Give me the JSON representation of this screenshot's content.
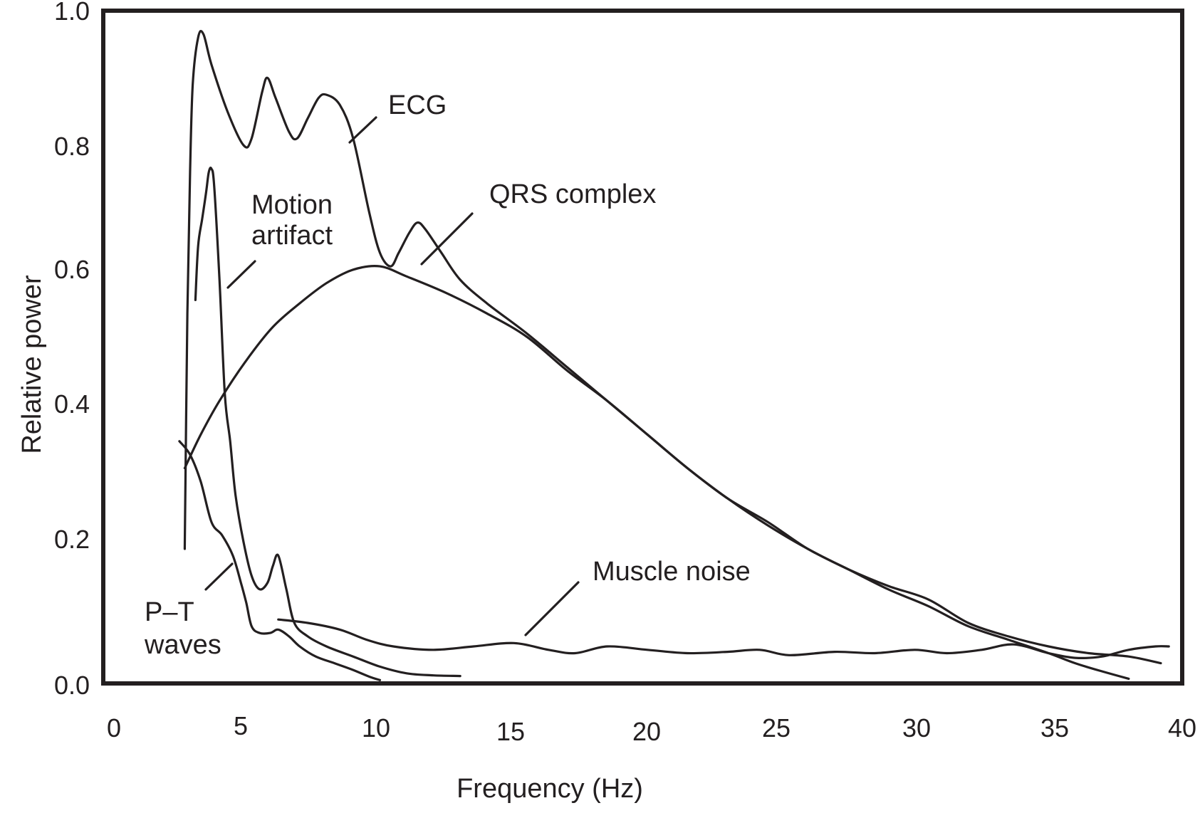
{
  "chart_data": {
    "type": "line",
    "xlabel": "Frequency (Hz)",
    "ylabel": "Relative power",
    "xlim": [
      0,
      40
    ],
    "ylim": [
      0,
      1.0
    ],
    "x_ticks": [
      "0",
      "5",
      "10",
      "15",
      "20",
      "25",
      "30",
      "35",
      "40"
    ],
    "y_ticks": [
      "0.0",
      "0.2",
      "0.4",
      "0.6",
      "0.8",
      "1.0"
    ],
    "grid": false,
    "legend": "none",
    "annotations": [
      {
        "id": "ecg",
        "lines": [
          "ECG"
        ]
      },
      {
        "id": "qrs",
        "lines": [
          "QRS complex"
        ]
      },
      {
        "id": "motion",
        "lines": [
          "Motion",
          "artifact"
        ]
      },
      {
        "id": "pt",
        "lines": [
          "P–T",
          "waves"
        ]
      },
      {
        "id": "muscle",
        "lines": [
          "Muscle noise"
        ]
      }
    ],
    "series": [
      {
        "id": "ecg",
        "label_ref": "ecg",
        "points": [
          [
            2.7,
            0.2
          ],
          [
            2.8,
            0.55
          ],
          [
            2.9,
            0.76
          ],
          [
            3.0,
            0.89
          ],
          [
            3.2,
            0.96
          ],
          [
            3.4,
            0.965
          ],
          [
            3.7,
            0.92
          ],
          [
            4.3,
            0.85
          ],
          [
            4.9,
            0.8
          ],
          [
            5.2,
            0.81
          ],
          [
            5.6,
            0.88
          ],
          [
            5.8,
            0.9
          ],
          [
            6.1,
            0.87
          ],
          [
            6.6,
            0.82
          ],
          [
            6.9,
            0.81
          ],
          [
            7.3,
            0.84
          ],
          [
            7.7,
            0.87
          ],
          [
            8.0,
            0.875
          ],
          [
            8.5,
            0.86
          ],
          [
            9.0,
            0.81
          ],
          [
            9.6,
            0.7
          ],
          [
            10.0,
            0.64
          ],
          [
            10.4,
            0.62
          ],
          [
            10.7,
            0.64
          ],
          [
            11.1,
            0.67
          ],
          [
            11.4,
            0.685
          ],
          [
            11.7,
            0.675
          ],
          [
            12.3,
            0.64
          ],
          [
            13.0,
            0.6
          ],
          [
            14.0,
            0.565
          ],
          [
            15.5,
            0.52
          ],
          [
            17.0,
            0.47
          ],
          [
            18.5,
            0.42
          ],
          [
            20.0,
            0.37
          ],
          [
            21.5,
            0.32
          ],
          [
            23.0,
            0.275
          ],
          [
            24.5,
            0.24
          ],
          [
            26.0,
            0.2
          ],
          [
            27.5,
            0.17
          ],
          [
            29.0,
            0.14
          ],
          [
            30.5,
            0.115
          ],
          [
            32.0,
            0.085
          ],
          [
            33.5,
            0.065
          ],
          [
            35.0,
            0.045
          ],
          [
            36.0,
            0.03
          ],
          [
            37.0,
            0.018
          ],
          [
            38.0,
            0.007
          ]
        ]
      },
      {
        "id": "qrs",
        "label_ref": "qrs",
        "points": [
          [
            2.7,
            0.32
          ],
          [
            3.3,
            0.37
          ],
          [
            4.0,
            0.42
          ],
          [
            5.0,
            0.48
          ],
          [
            6.0,
            0.53
          ],
          [
            7.0,
            0.565
          ],
          [
            8.0,
            0.595
          ],
          [
            9.0,
            0.615
          ],
          [
            10.0,
            0.62
          ],
          [
            11.0,
            0.605
          ],
          [
            12.5,
            0.58
          ],
          [
            14.0,
            0.55
          ],
          [
            15.5,
            0.515
          ],
          [
            17.0,
            0.465
          ],
          [
            18.5,
            0.42
          ],
          [
            20.0,
            0.37
          ],
          [
            21.5,
            0.32
          ],
          [
            23.0,
            0.275
          ],
          [
            24.5,
            0.235
          ],
          [
            26.0,
            0.2
          ],
          [
            27.5,
            0.17
          ],
          [
            29.0,
            0.145
          ],
          [
            30.5,
            0.125
          ],
          [
            32.0,
            0.09
          ],
          [
            33.5,
            0.07
          ],
          [
            35.0,
            0.055
          ],
          [
            36.5,
            0.045
          ],
          [
            38.0,
            0.04
          ],
          [
            39.2,
            0.03
          ]
        ]
      },
      {
        "id": "motion",
        "label_ref": "motion",
        "points": [
          [
            3.1,
            0.57
          ],
          [
            3.2,
            0.65
          ],
          [
            3.35,
            0.69
          ],
          [
            3.5,
            0.73
          ],
          [
            3.6,
            0.76
          ],
          [
            3.7,
            0.765
          ],
          [
            3.8,
            0.74
          ],
          [
            4.0,
            0.6
          ],
          [
            4.2,
            0.43
          ],
          [
            4.4,
            0.36
          ],
          [
            4.6,
            0.28
          ],
          [
            4.9,
            0.21
          ],
          [
            5.2,
            0.16
          ],
          [
            5.5,
            0.14
          ],
          [
            5.8,
            0.15
          ],
          [
            6.0,
            0.175
          ],
          [
            6.2,
            0.19
          ],
          [
            6.5,
            0.14
          ],
          [
            6.8,
            0.09
          ],
          [
            7.3,
            0.07
          ],
          [
            8.0,
            0.055
          ],
          [
            9.0,
            0.04
          ],
          [
            10.0,
            0.025
          ],
          [
            11.0,
            0.015
          ],
          [
            12.0,
            0.012
          ],
          [
            13.0,
            0.011
          ]
        ]
      },
      {
        "id": "pt",
        "label_ref": "pt",
        "points": [
          [
            2.5,
            0.36
          ],
          [
            2.9,
            0.34
          ],
          [
            3.3,
            0.3
          ],
          [
            3.7,
            0.24
          ],
          [
            4.1,
            0.22
          ],
          [
            4.5,
            0.19
          ],
          [
            4.8,
            0.15
          ],
          [
            5.0,
            0.12
          ],
          [
            5.2,
            0.085
          ],
          [
            5.5,
            0.075
          ],
          [
            5.9,
            0.075
          ],
          [
            6.2,
            0.08
          ],
          [
            6.6,
            0.07
          ],
          [
            7.0,
            0.055
          ],
          [
            7.6,
            0.04
          ],
          [
            8.3,
            0.03
          ],
          [
            9.0,
            0.02
          ],
          [
            9.6,
            0.01
          ],
          [
            10.0,
            0.005
          ]
        ]
      },
      {
        "id": "muscle",
        "label_ref": "muscle",
        "points": [
          [
            6.2,
            0.095
          ],
          [
            7.3,
            0.09
          ],
          [
            8.5,
            0.08
          ],
          [
            9.5,
            0.065
          ],
          [
            10.5,
            0.055
          ],
          [
            12.0,
            0.05
          ],
          [
            13.5,
            0.055
          ],
          [
            15.0,
            0.06
          ],
          [
            16.3,
            0.05
          ],
          [
            17.3,
            0.045
          ],
          [
            18.5,
            0.055
          ],
          [
            20.0,
            0.05
          ],
          [
            21.5,
            0.045
          ],
          [
            23.0,
            0.047
          ],
          [
            24.2,
            0.05
          ],
          [
            25.3,
            0.042
          ],
          [
            27.0,
            0.047
          ],
          [
            28.5,
            0.045
          ],
          [
            30.0,
            0.05
          ],
          [
            31.2,
            0.045
          ],
          [
            32.5,
            0.05
          ],
          [
            33.7,
            0.058
          ],
          [
            35.0,
            0.045
          ],
          [
            36.0,
            0.038
          ],
          [
            37.0,
            0.04
          ],
          [
            38.0,
            0.05
          ],
          [
            39.0,
            0.055
          ],
          [
            39.5,
            0.055
          ]
        ]
      }
    ]
  }
}
